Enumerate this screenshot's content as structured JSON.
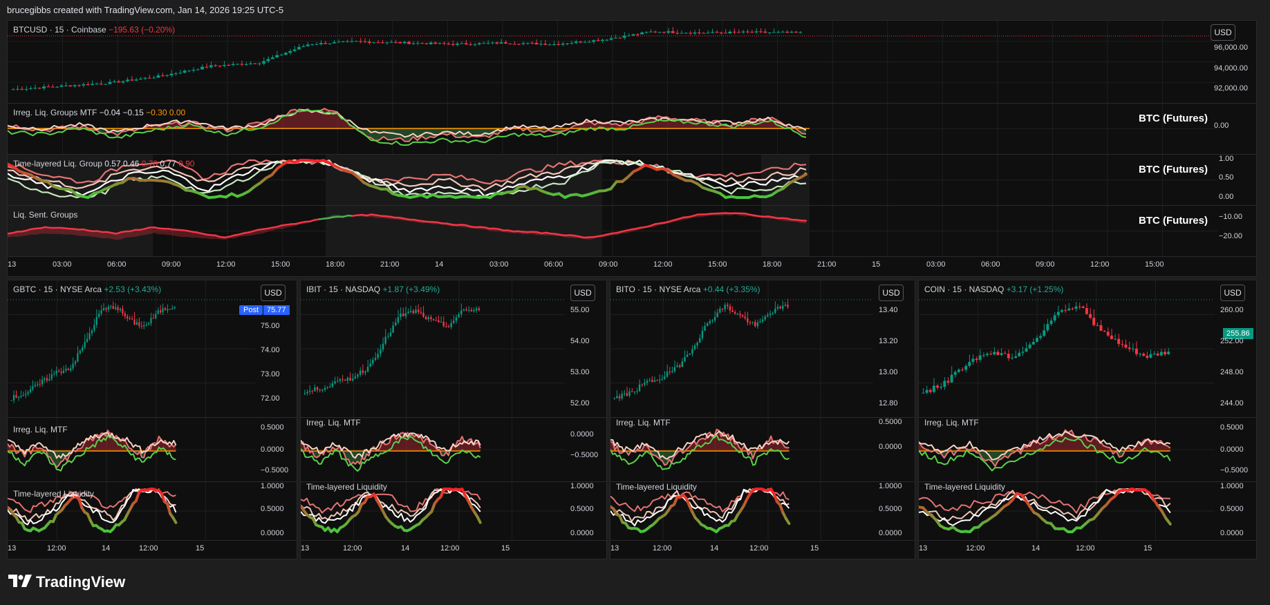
{
  "header": {
    "text": "brucegibbs created with TradingView.com, Jan 14, 2026 19:25 UTC-5"
  },
  "colors": {
    "up": "#089981",
    "down": "#f23645",
    "bg": "#0f0f0f",
    "green": "#4caf50",
    "red": "#f23645",
    "orange": "#ff9800"
  },
  "main": {
    "symbol": "BTCUSD · 15 · Coinbase",
    "change": "−195.63 (−0.20%)",
    "currency": "USD",
    "price_axis": [
      "96,000.00",
      "94,000.00",
      "92,000.00"
    ],
    "pane1": {
      "title": "Irreg. Liq. Groups MTF",
      "v1": "−0.04",
      "v2": "−0.15",
      "v3": "−0.30",
      "v4": "0.00",
      "right_label": "BTC (Futures)",
      "axis": [
        "0.00"
      ]
    },
    "pane2": {
      "title": "Time-layered Liq. Group",
      "v1": "0.57",
      "v2": "0.46",
      "v3": "0.70",
      "v4": "0.77",
      "v5": "0.90",
      "right_label": "BTC (Futures)",
      "axis": [
        "1.00",
        "0.50",
        "0.00"
      ]
    },
    "pane3": {
      "title": "Liq. Sent. Groups",
      "right_label": "BTC (Futures)",
      "axis": [
        "−10.00",
        "−20.00"
      ]
    },
    "time_axis": [
      "13",
      "03:00",
      "06:00",
      "09:00",
      "12:00",
      "15:00",
      "18:00",
      "21:00",
      "14",
      "03:00",
      "06:00",
      "09:00",
      "12:00",
      "15:00",
      "18:00",
      "21:00",
      "15",
      "03:00",
      "06:00",
      "09:00",
      "12:00",
      "15:00"
    ]
  },
  "charts": [
    {
      "symbol": "GBTC · 15 · NYSE Arca",
      "change": "+2.53 (+3.43%)",
      "currency": "USD",
      "price_axis": [
        "75.00",
        "74.00",
        "73.00",
        "72.00"
      ],
      "post_label": "Post",
      "post_value": "75.77",
      "irreg_title": "Irreg. Liq. MTF",
      "irreg_axis": [
        "0.5000",
        "0.0000",
        "−0.5000"
      ],
      "time_title": "Time-layered Liquidity",
      "time_axis_vals": [
        "1.0000",
        "0.5000",
        "0.0000"
      ],
      "x_axis": [
        "13",
        "12:00",
        "14",
        "12:00",
        "15"
      ]
    },
    {
      "symbol": "IBIT · 15 · NASDAQ",
      "change": "+1.87 (+3.49%)",
      "currency": "USD",
      "price_axis": [
        "55.00",
        "54.00",
        "53.00",
        "52.00"
      ],
      "irreg_title": "Irreg. Liq. MTF",
      "irreg_axis": [
        "0.0000",
        "−0.5000"
      ],
      "time_title": "Time-layered Liquidity",
      "time_axis_vals": [
        "1.0000",
        "0.5000",
        "0.0000"
      ],
      "x_axis": [
        "13",
        "12:00",
        "14",
        "12:00",
        "15"
      ]
    },
    {
      "symbol": "BITO · 15 · NYSE Arca",
      "change": "+0.44 (+3.35%)",
      "currency": "USD",
      "price_axis": [
        "13.40",
        "13.20",
        "13.00",
        "12.80"
      ],
      "irreg_title": "Irreg. Liq. MTF",
      "irreg_axis": [
        "0.5000",
        "0.0000"
      ],
      "time_title": "Time-layered Liquidity",
      "time_axis_vals": [
        "1.0000",
        "0.5000",
        "0.0000"
      ],
      "x_axis": [
        "13",
        "12:00",
        "14",
        "12:00",
        "15"
      ]
    },
    {
      "symbol": "COIN · 15 · NASDAQ",
      "change": "+3.17 (+1.25%)",
      "currency": "USD",
      "price_axis": [
        "260.00",
        "252.00",
        "248.00",
        "244.00"
      ],
      "price_tag": "255.86",
      "irreg_title": "Irreg. Liq. MTF",
      "irreg_axis": [
        "0.5000",
        "0.0000",
        "−0.5000"
      ],
      "time_title": "Time-layered Liquidity",
      "time_axis_vals": [
        "1.0000",
        "0.5000",
        "0.0000"
      ],
      "x_axis": [
        "13",
        "12:00",
        "14",
        "12:00",
        "15"
      ]
    }
  ],
  "footer": {
    "logo": "TradingView",
    "logo_icon": "tradingview-logo-icon"
  }
}
